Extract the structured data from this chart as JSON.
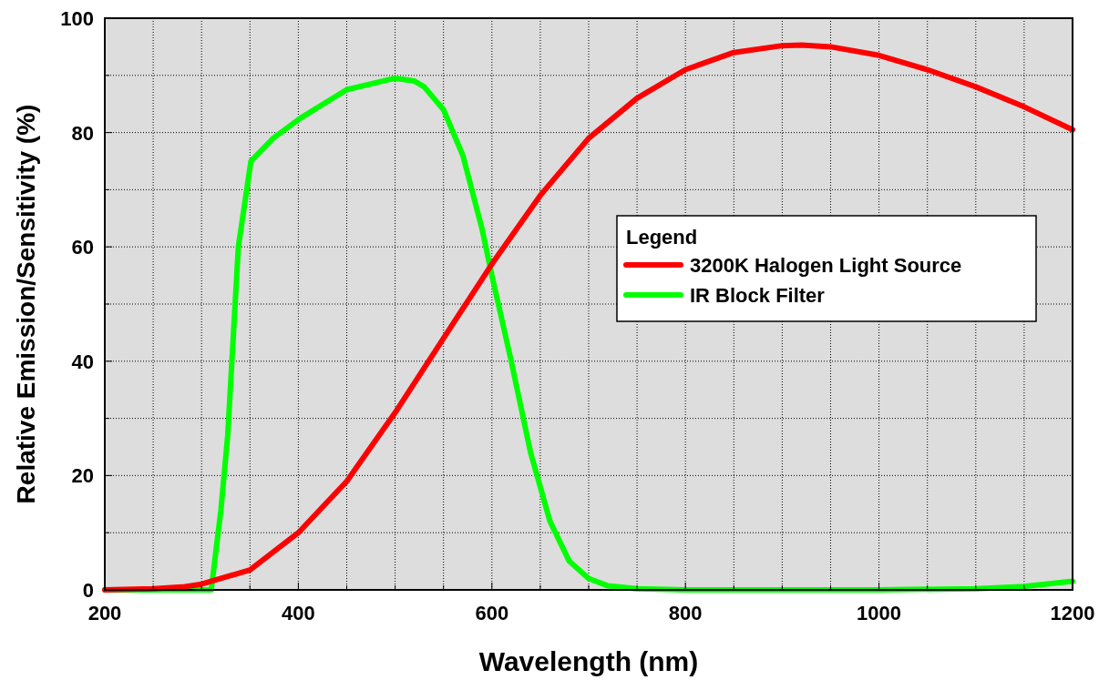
{
  "chart_data": {
    "type": "line",
    "xlabel": "Wavelength (nm)",
    "ylabel": "Relative Emission/Sensitivity (%)",
    "legend_title": "Legend",
    "legend": "right",
    "grid": true,
    "line_style": "solid",
    "marker": "none",
    "xlim": [
      200,
      1200
    ],
    "ylim": [
      0,
      100
    ],
    "xticks": [
      200,
      {
        "value": 250,
        "label": null
      },
      {
        "value": 300,
        "label": null
      },
      {
        "value": 350,
        "label": null
      },
      400,
      {
        "value": 450,
        "label": null
      },
      {
        "value": 500,
        "label": null
      },
      {
        "value": 550,
        "label": null
      },
      600,
      {
        "value": 650,
        "label": null
      },
      {
        "value": 700,
        "label": null
      },
      {
        "value": 750,
        "label": null
      },
      800,
      {
        "value": 850,
        "label": null
      },
      {
        "value": 900,
        "label": null
      },
      {
        "value": 950,
        "label": null
      },
      1000,
      {
        "value": 1050,
        "label": null
      },
      {
        "value": 1100,
        "label": null
      },
      {
        "value": 1150,
        "label": null
      },
      1200
    ],
    "yticks": [
      0,
      {
        "value": 10,
        "label": null
      },
      20,
      {
        "value": 30,
        "label": null
      },
      40,
      {
        "value": 50,
        "label": null
      },
      60,
      {
        "value": 70,
        "label": null
      },
      80,
      {
        "value": 90,
        "label": null
      },
      100
    ],
    "series": [
      {
        "name": "3200K Halogen Light Source",
        "color": "#ff0000",
        "x": [
          200,
          250,
          280,
          300,
          350,
          400,
          450,
          500,
          550,
          600,
          650,
          700,
          750,
          800,
          850,
          900,
          920,
          950,
          1000,
          1050,
          1100,
          1150,
          1200
        ],
        "values": [
          0,
          0.2,
          0.5,
          1,
          3.5,
          10,
          19,
          31,
          44,
          57,
          69,
          79,
          86,
          91,
          94,
          95.2,
          95.3,
          95,
          93.5,
          91,
          88,
          84.5,
          80.5
        ]
      },
      {
        "name": "IR Block Filter",
        "color": "#00ff00",
        "x": [
          200,
          310,
          320,
          327,
          338,
          351,
          374,
          402,
          450,
          500,
          520,
          530,
          550,
          570,
          590,
          600,
          620,
          640,
          660,
          680,
          700,
          720,
          750,
          800,
          1000,
          1100,
          1150,
          1200
        ],
        "values": [
          0,
          0,
          14,
          27,
          60,
          75,
          79,
          82.5,
          87.5,
          89.5,
          89,
          88,
          84,
          76,
          63,
          55,
          40,
          24,
          12,
          5,
          2,
          0.7,
          0.2,
          0,
          0,
          0.2,
          0.6,
          1.5
        ]
      }
    ]
  }
}
